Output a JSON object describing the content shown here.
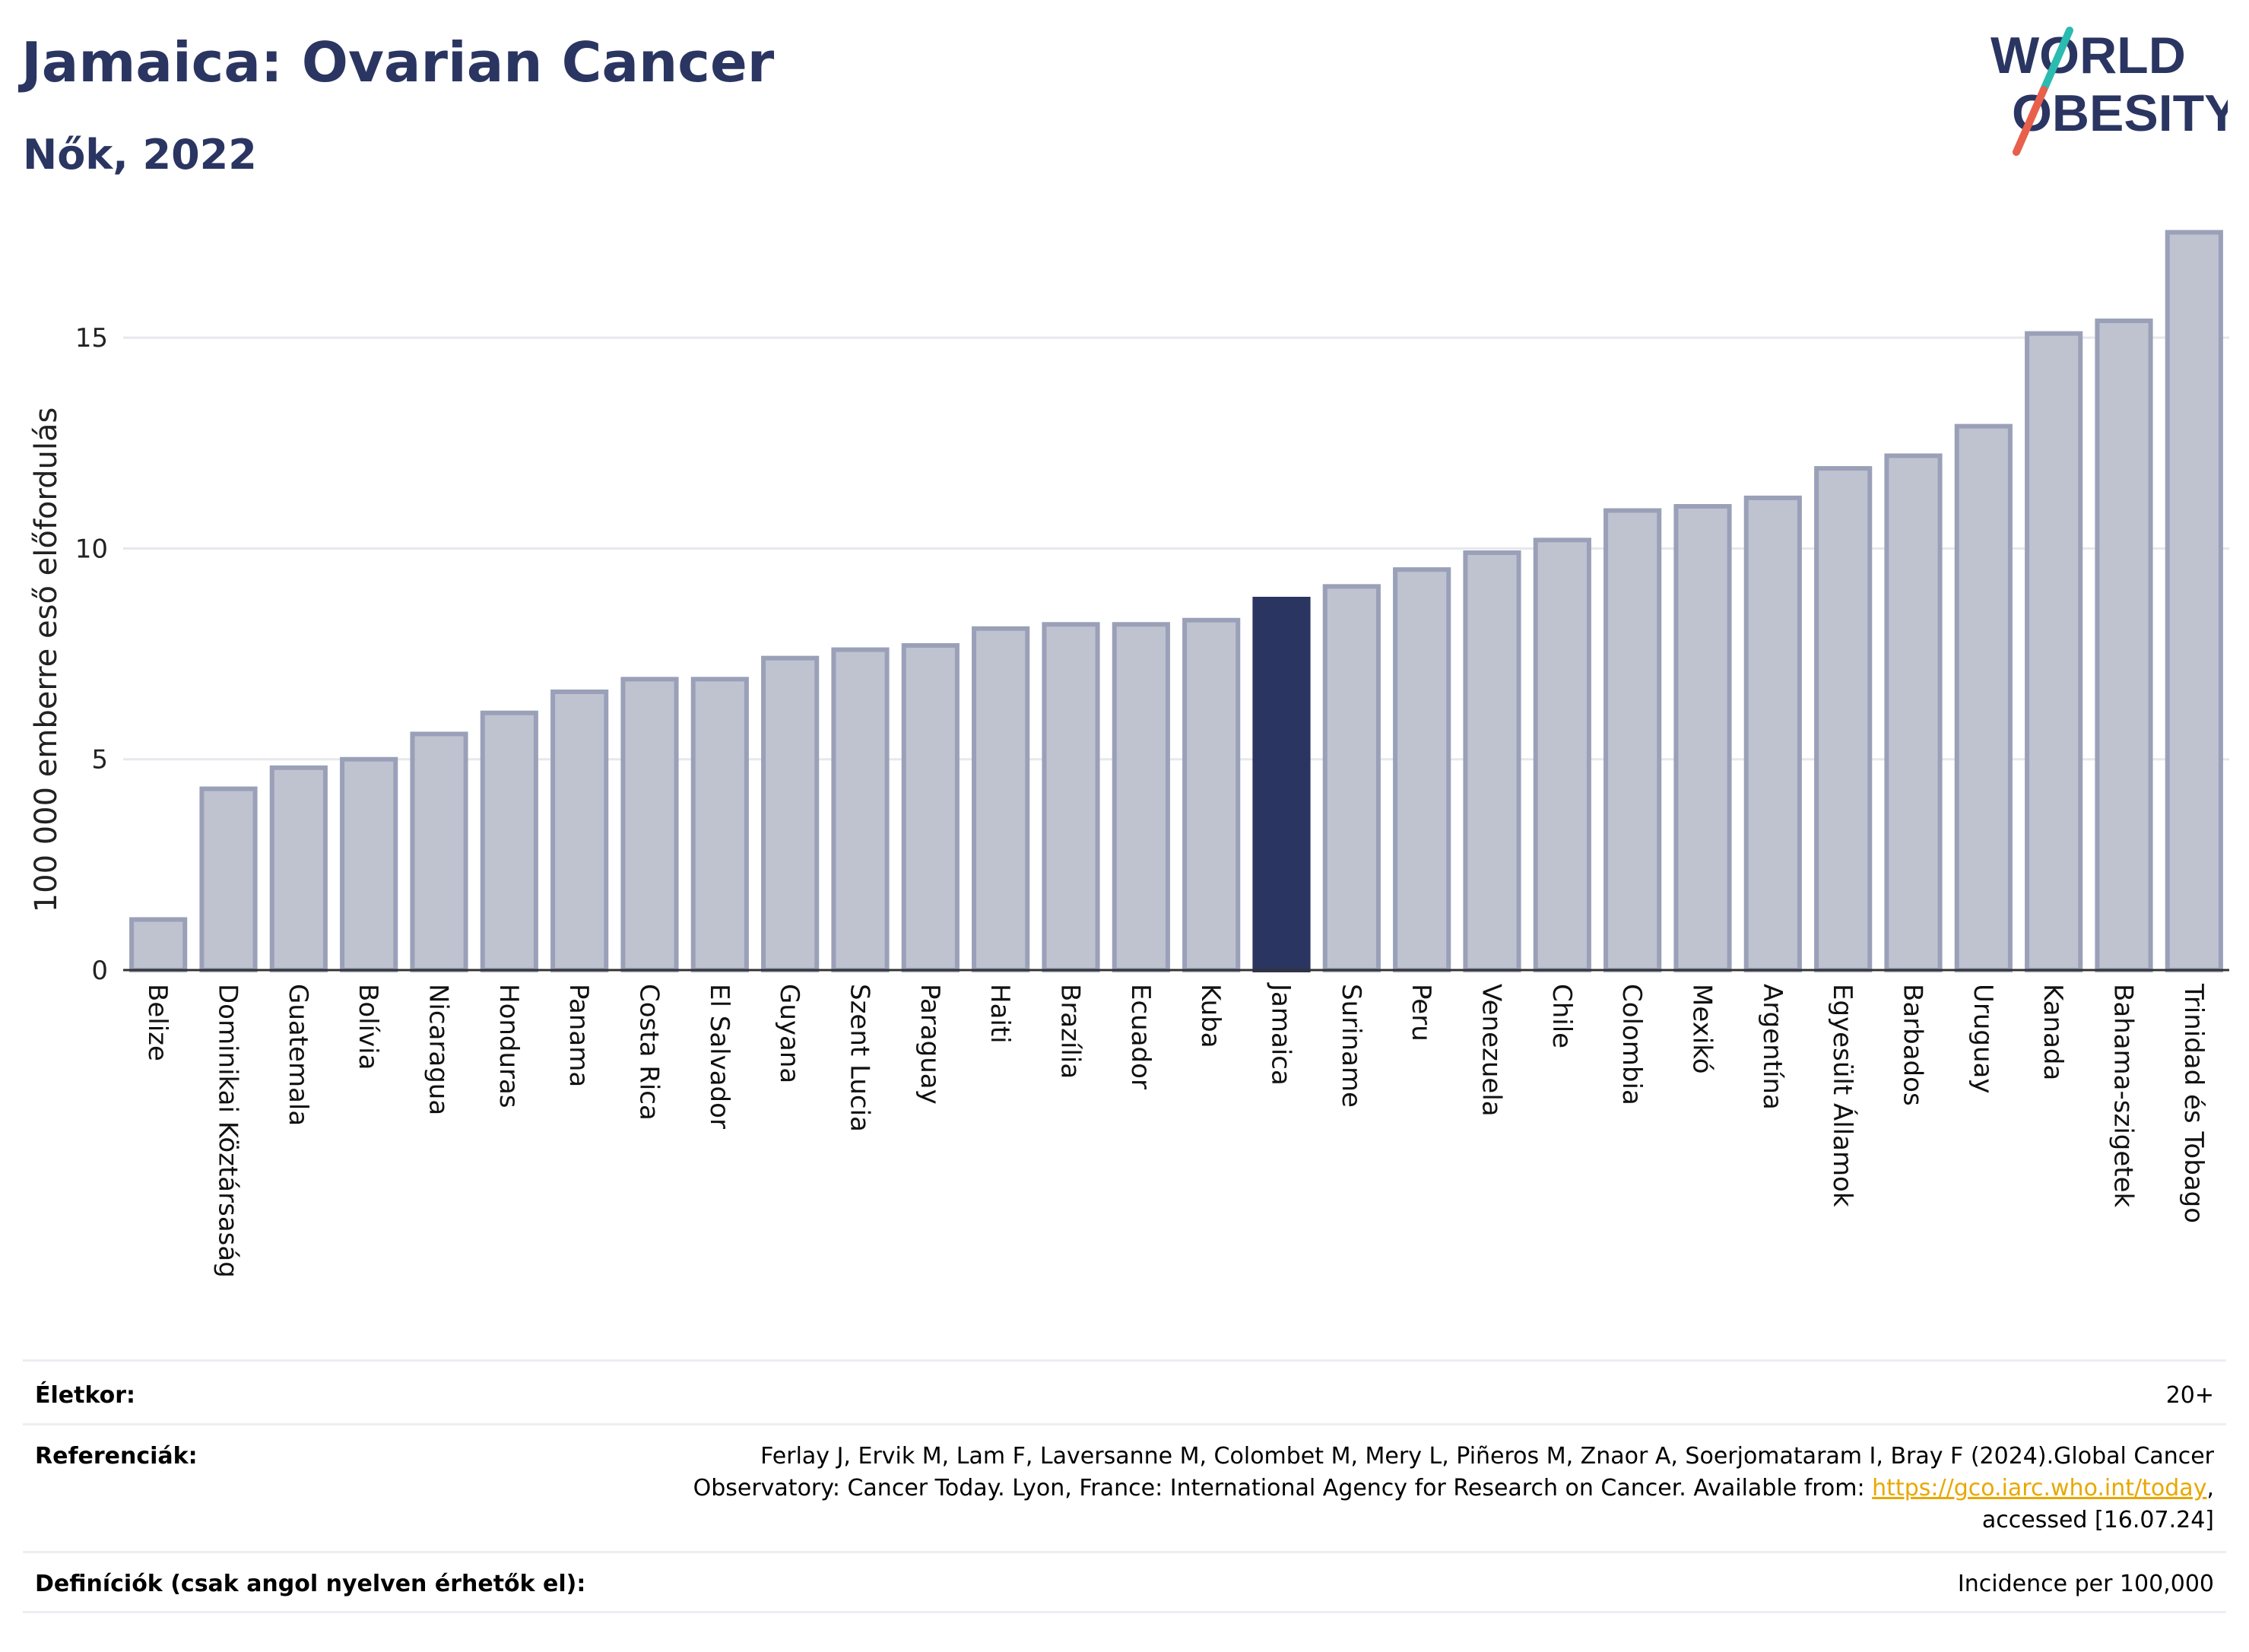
{
  "header": {
    "title": "Jamaica: Ovarian Cancer",
    "subtitle": "Nők, 2022"
  },
  "logo": {
    "line1": "WORLD",
    "line2": "OBESITY",
    "color_text": "#2a3561",
    "color_slash_top": "#2bbbb0",
    "color_slash_bottom": "#e8604c"
  },
  "colors": {
    "bar": "#bfc3d0",
    "bar_outline": "#9aa0b8",
    "highlight": "#2a3561",
    "grid": "#e6e8ee",
    "axis": "#333333"
  },
  "chart_data": {
    "type": "bar",
    "ylabel": "100 000 emberre eső előfordulás",
    "ylim": [
      0,
      17.6
    ],
    "yticks": [
      0,
      5,
      10,
      15
    ],
    "grid": true,
    "highlight": "Jamaica",
    "categories": [
      "Belize",
      "Dominikai Köztársaság",
      "Guatemala",
      "Bolívia",
      "Nicaragua",
      "Honduras",
      "Panama",
      "Costa Rica",
      "El Salvador",
      "Guyana",
      "Szent Lucia",
      "Paraguay",
      "Haiti",
      "Brazília",
      "Ecuador",
      "Kuba",
      "Jamaica",
      "Suriname",
      "Peru",
      "Venezuela",
      "Chile",
      "Colombia",
      "Mexikó",
      "Argentína",
      "Egyesült Államok",
      "Barbados",
      "Uruguay",
      "Kanada",
      "Bahama-szigetek",
      "Trinidad és Tobago"
    ],
    "values": [
      1.2,
      4.3,
      4.8,
      5.0,
      5.6,
      6.1,
      6.6,
      6.9,
      6.9,
      7.4,
      7.6,
      7.7,
      8.1,
      8.2,
      8.2,
      8.3,
      8.8,
      9.1,
      9.5,
      9.9,
      10.2,
      10.9,
      11.0,
      11.2,
      11.9,
      12.2,
      12.9,
      15.1,
      15.4,
      17.5
    ]
  },
  "footer": {
    "age_label": "Életkor:",
    "age_value": "20+",
    "ref_label": "Referenciák:",
    "ref_text_before": "Ferlay J, Ervik M, Lam F, Laversanne M, Colombet M, Mery L, Piñeros M, Znaor A, Soerjomataram I, Bray F (2024).Global Cancer Observatory: Cancer Today. Lyon, France: International Agency for Research on Cancer. Available from: ",
    "ref_link": "https://gco.iarc.who.int/today",
    "ref_text_after": ", accessed [16.07.24]",
    "def_label": "Definíciók (csak angol nyelven érhetők el):",
    "def_value": "Incidence per 100,000"
  }
}
